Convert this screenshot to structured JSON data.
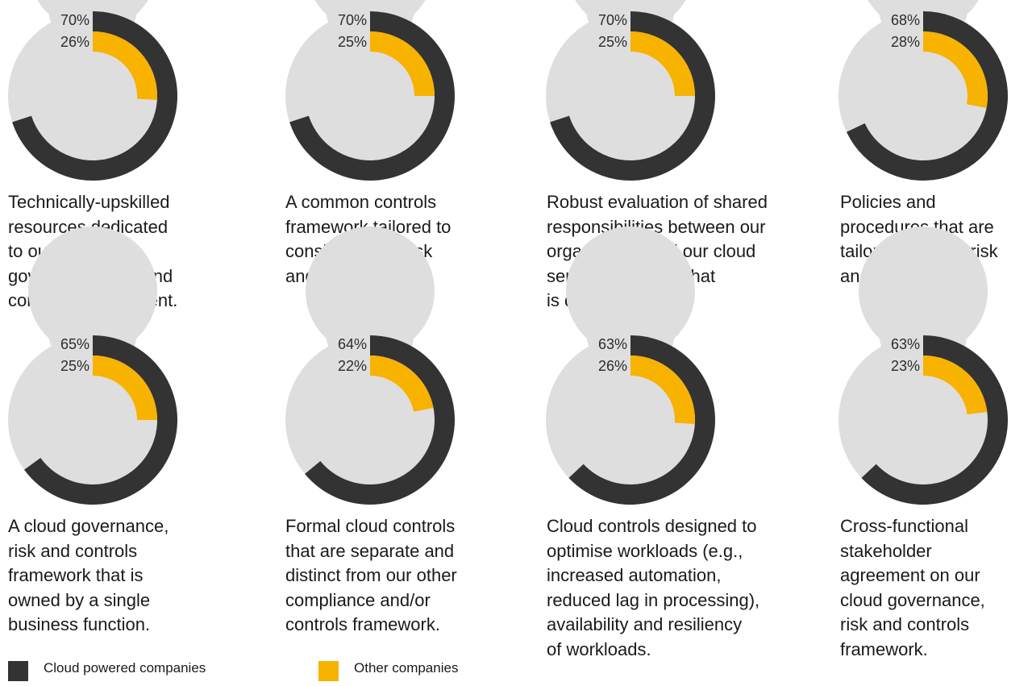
{
  "colors": {
    "cloud_powered": "#333333",
    "other": "#f8b200",
    "track": "#dedede",
    "background": "#ffffff"
  },
  "legend": [
    {
      "label": "Cloud powered companies",
      "color": "#333333"
    },
    {
      "label": "Other companies",
      "color": "#f8b200"
    }
  ],
  "chart_data": {
    "type": "donut",
    "title": "",
    "series": [
      {
        "name": "Cloud powered companies",
        "ring": "outer",
        "color": "#333333",
        "values": [
          70,
          70,
          70,
          68,
          65,
          64,
          63,
          63
        ]
      },
      {
        "name": "Other companies",
        "ring": "inner",
        "color": "#f8b200",
        "values": [
          26,
          25,
          25,
          28,
          25,
          22,
          26,
          23
        ]
      }
    ],
    "unit": "%",
    "categories": [
      "Technically-upskilled resources dedicated to our cloud governance, risk and controls environment.",
      "A common controls framework tailored to consider cloud risk and controls.",
      "Robust evaluation of shared responsibilities between our organisation and our cloud service providers that is documented.",
      "Policies and procedures that are tailored to cloud risk and controls.",
      "A cloud governance, risk and controls framework that is owned by a single business function.",
      "Formal cloud controls that are separate and distinct from our other compliance and/or controls framework.",
      "Cloud controls designed to optimise workloads (e.g., increased automation, reduced lag in processing), availability and resiliency of workloads.",
      "Cross-functional stakeholder agreement on our cloud governance, risk and controls framework."
    ],
    "panels": [
      {
        "cloud": 70,
        "other": 26,
        "cloud_label": "70%",
        "other_label": "26%",
        "caption_lines": [
          "Technically-upskilled",
          "resources dedicated",
          "to our cloud",
          "governance, risk and",
          "controls environment."
        ]
      },
      {
        "cloud": 70,
        "other": 25,
        "cloud_label": "70%",
        "other_label": "25%",
        "caption_lines": [
          "A common controls",
          "framework tailored to",
          "consider cloud risk",
          "and controls."
        ]
      },
      {
        "cloud": 70,
        "other": 25,
        "cloud_label": "70%",
        "other_label": "25%",
        "caption_lines": [
          "Robust evaluation of shared",
          "responsibilities between our",
          "organisation and our cloud",
          "service providers that",
          "is documented."
        ]
      },
      {
        "cloud": 68,
        "other": 28,
        "cloud_label": "68%",
        "other_label": "28%",
        "caption_lines": [
          "Policies and",
          "procedures that are",
          "tailored to cloud risk",
          "and controls."
        ]
      },
      {
        "cloud": 65,
        "other": 25,
        "cloud_label": "65%",
        "other_label": "25%",
        "caption_lines": [
          "A cloud governance,",
          "risk and controls",
          "framework that is",
          "owned by a single",
          "business function."
        ]
      },
      {
        "cloud": 64,
        "other": 22,
        "cloud_label": "64%",
        "other_label": "22%",
        "caption_lines": [
          "Formal cloud controls",
          "that are separate and",
          "distinct from our other",
          "compliance and/or",
          "controls framework."
        ]
      },
      {
        "cloud": 63,
        "other": 26,
        "cloud_label": "63%",
        "other_label": "26%",
        "caption_lines": [
          "Cloud controls designed to",
          "optimise workloads (e.g.,",
          "increased automation,",
          "reduced lag in processing),",
          "availability and resiliency",
          "of workloads."
        ]
      },
      {
        "cloud": 63,
        "other": 23,
        "cloud_label": "63%",
        "other_label": "23%",
        "caption_lines": [
          "Cross-functional",
          "stakeholder",
          "agreement on our",
          "cloud governance,",
          "risk and controls",
          "framework."
        ]
      }
    ],
    "legend_position": "bottom-left"
  }
}
